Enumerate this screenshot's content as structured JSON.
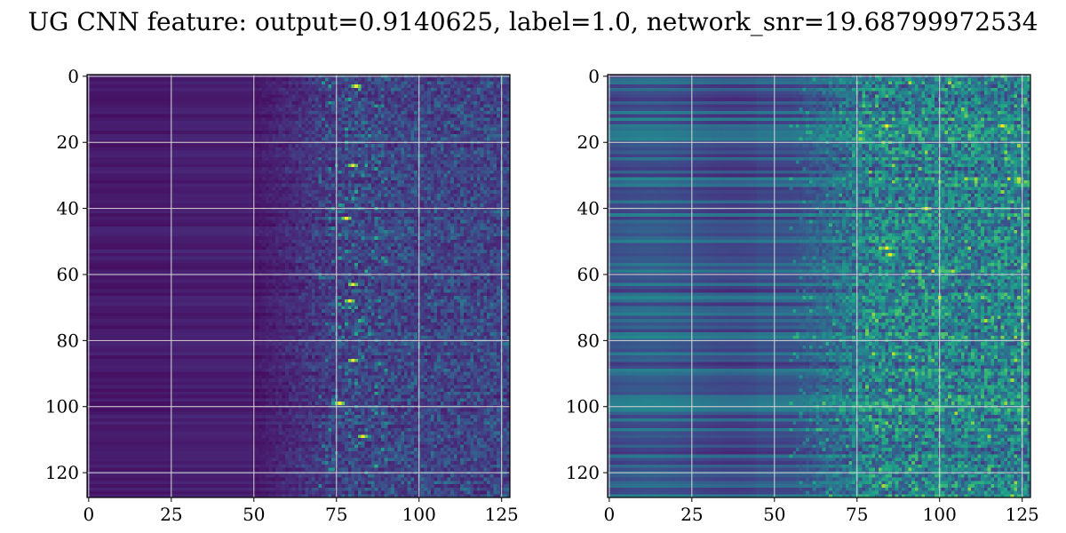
{
  "figure": {
    "title": "UG CNN feature: output=0.9140625, label=1.0, network_snr=19.68799972534"
  },
  "chart_data": [
    {
      "type": "heatmap",
      "title": "",
      "xlabel": "",
      "ylabel": "",
      "colormap": "viridis",
      "grid": true,
      "grid_color": "#d9d9d9",
      "x_ticks": [
        0,
        25,
        50,
        75,
        100,
        125
      ],
      "y_ticks": [
        0,
        20,
        40,
        60,
        80,
        100,
        120
      ],
      "x_tick_labels": [
        "0",
        "25",
        "50",
        "75",
        "100",
        "125"
      ],
      "y_tick_labels": [
        "0",
        "20",
        "40",
        "60",
        "80",
        "100",
        "120"
      ],
      "xlim": [
        -0.5,
        127.5
      ],
      "ylim": [
        127.5,
        -0.5
      ],
      "rows": 128,
      "cols": 128,
      "pattern": "dark uniform purple on left (columns 0-50), increasingly noisy green/teal speckle to the right of column ~60; bright yellow highlights near column 78-82",
      "highlights": [
        {
          "x": 81,
          "y": 3
        },
        {
          "x": 80,
          "y": 27
        },
        {
          "x": 78,
          "y": 43
        },
        {
          "x": 80,
          "y": 63
        },
        {
          "x": 79,
          "y": 68
        },
        {
          "x": 80,
          "y": 86
        },
        {
          "x": 76,
          "y": 99
        },
        {
          "x": 83,
          "y": 109
        }
      ]
    },
    {
      "type": "heatmap",
      "title": "",
      "xlabel": "",
      "ylabel": "",
      "colormap": "viridis",
      "grid": true,
      "grid_color": "#d9d9d9",
      "x_ticks": [
        0,
        25,
        50,
        75,
        100,
        125
      ],
      "y_ticks": [
        0,
        20,
        40,
        60,
        80,
        100,
        120
      ],
      "x_tick_labels": [
        "0",
        "25",
        "50",
        "75",
        "100",
        "125"
      ],
      "y_tick_labels": [
        "0",
        "20",
        "40",
        "60",
        "80",
        "100",
        "120"
      ],
      "xlim": [
        -0.5,
        127.5
      ],
      "ylim": [
        127.5,
        -0.5
      ],
      "rows": 128,
      "cols": 128,
      "pattern": "horizontal blue/teal banding across all columns, noisy green speckle right of column ~65",
      "highlights": [
        {
          "x": 84,
          "y": 15
        },
        {
          "x": 84,
          "y": 52
        },
        {
          "x": 85,
          "y": 54
        },
        {
          "x": 119,
          "y": 15
        },
        {
          "x": 96,
          "y": 40
        }
      ]
    }
  ]
}
